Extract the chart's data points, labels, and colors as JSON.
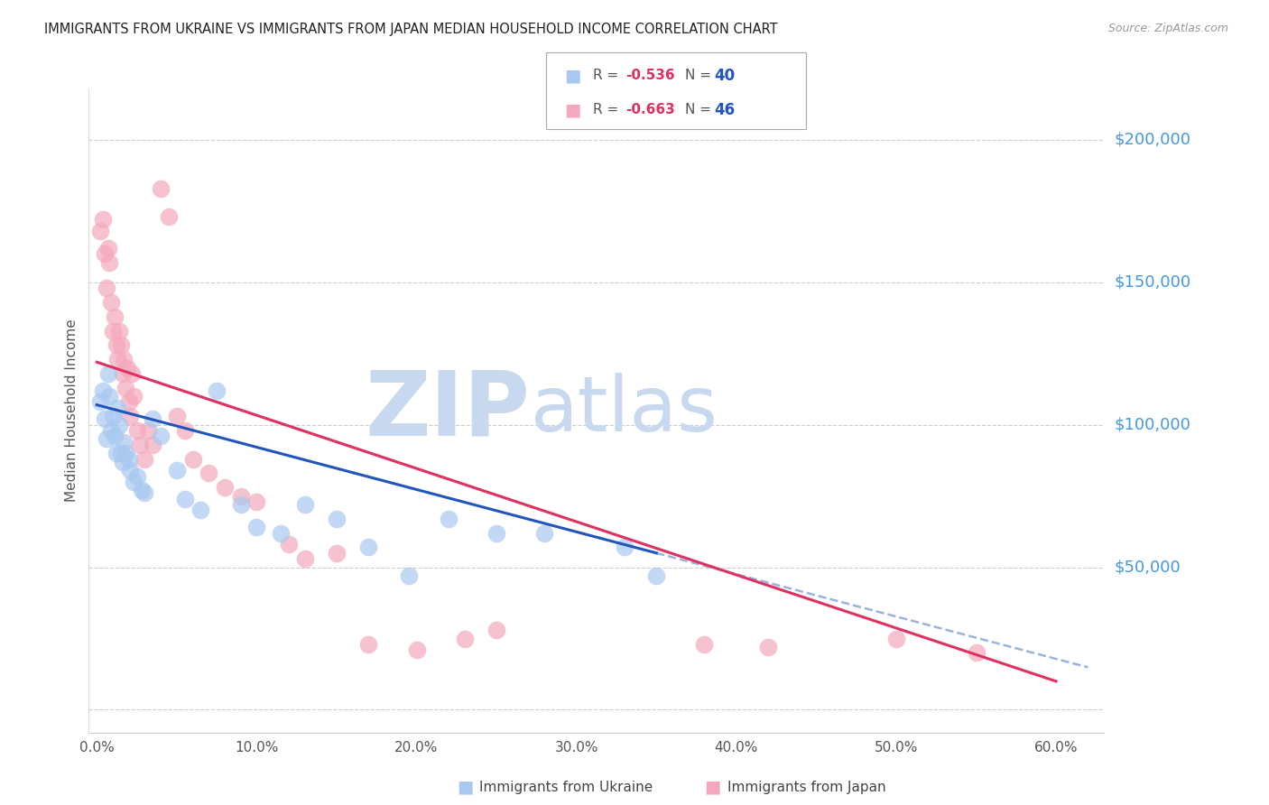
{
  "title": "IMMIGRANTS FROM UKRAINE VS IMMIGRANTS FROM JAPAN MEDIAN HOUSEHOLD INCOME CORRELATION CHART",
  "source": "Source: ZipAtlas.com",
  "ylabel": "Median Household Income",
  "xlabel_ticks": [
    "0.0%",
    "10.0%",
    "20.0%",
    "30.0%",
    "40.0%",
    "50.0%",
    "60.0%"
  ],
  "xlabel_vals": [
    0.0,
    10.0,
    20.0,
    30.0,
    40.0,
    50.0,
    60.0
  ],
  "ytick_vals": [
    0,
    50000,
    100000,
    150000,
    200000
  ],
  "ytick_labels": [
    "",
    "$50,000",
    "$100,000",
    "$150,000",
    "$200,000"
  ],
  "xlim": [
    -0.5,
    63.0
  ],
  "ylim": [
    -8000,
    218000
  ],
  "ukraine_color": "#A8C8F0",
  "japan_color": "#F5A8BC",
  "ukraine_line_color": "#2255BB",
  "japan_line_color": "#E03060",
  "ukraine_R": -0.536,
  "ukraine_N": 40,
  "japan_R": -0.663,
  "japan_N": 46,
  "watermark_zip": "ZIP",
  "watermark_atlas": "atlas",
  "watermark_color": "#C8D8EE",
  "ukraine_x": [
    0.2,
    0.4,
    0.5,
    0.6,
    0.7,
    0.8,
    0.9,
    1.0,
    1.1,
    1.2,
    1.3,
    1.4,
    1.5,
    1.6,
    1.7,
    1.8,
    2.0,
    2.1,
    2.3,
    2.5,
    2.8,
    3.0,
    3.5,
    4.0,
    5.0,
    5.5,
    6.5,
    7.5,
    9.0,
    10.0,
    11.5,
    13.0,
    15.0,
    17.0,
    19.5,
    22.0,
    25.0,
    28.0,
    33.0,
    35.0
  ],
  "ukraine_y": [
    108000,
    112000,
    102000,
    95000,
    118000,
    110000,
    98000,
    103000,
    96000,
    90000,
    106000,
    100000,
    90000,
    87000,
    94000,
    90000,
    88000,
    84000,
    80000,
    82000,
    77000,
    76000,
    102000,
    96000,
    84000,
    74000,
    70000,
    112000,
    72000,
    64000,
    62000,
    72000,
    67000,
    57000,
    47000,
    67000,
    62000,
    62000,
    57000,
    47000
  ],
  "japan_x": [
    0.2,
    0.4,
    0.5,
    0.6,
    0.7,
    0.8,
    0.9,
    1.0,
    1.1,
    1.2,
    1.3,
    1.4,
    1.5,
    1.6,
    1.7,
    1.8,
    1.9,
    2.0,
    2.1,
    2.2,
    2.3,
    2.5,
    2.7,
    3.0,
    3.2,
    3.5,
    4.0,
    4.5,
    5.0,
    5.5,
    6.0,
    7.0,
    8.0,
    9.0,
    10.0,
    12.0,
    13.0,
    15.0,
    17.0,
    20.0,
    23.0,
    25.0,
    38.0,
    42.0,
    50.0,
    55.0
  ],
  "japan_y": [
    168000,
    172000,
    160000,
    148000,
    162000,
    157000,
    143000,
    133000,
    138000,
    128000,
    123000,
    133000,
    128000,
    118000,
    123000,
    113000,
    120000,
    108000,
    103000,
    118000,
    110000,
    98000,
    93000,
    88000,
    98000,
    93000,
    183000,
    173000,
    103000,
    98000,
    88000,
    83000,
    78000,
    75000,
    73000,
    58000,
    53000,
    55000,
    23000,
    21000,
    25000,
    28000,
    23000,
    22000,
    25000,
    20000
  ],
  "ukraine_line_x0": 0.0,
  "ukraine_line_y0": 107000,
  "ukraine_line_x1": 35.0,
  "ukraine_line_y1": 55000,
  "ukraine_dash_x0": 35.0,
  "ukraine_dash_x1": 62.0,
  "japan_line_x0": 0.0,
  "japan_line_y0": 122000,
  "japan_line_x1": 60.0,
  "japan_line_y1": 10000
}
